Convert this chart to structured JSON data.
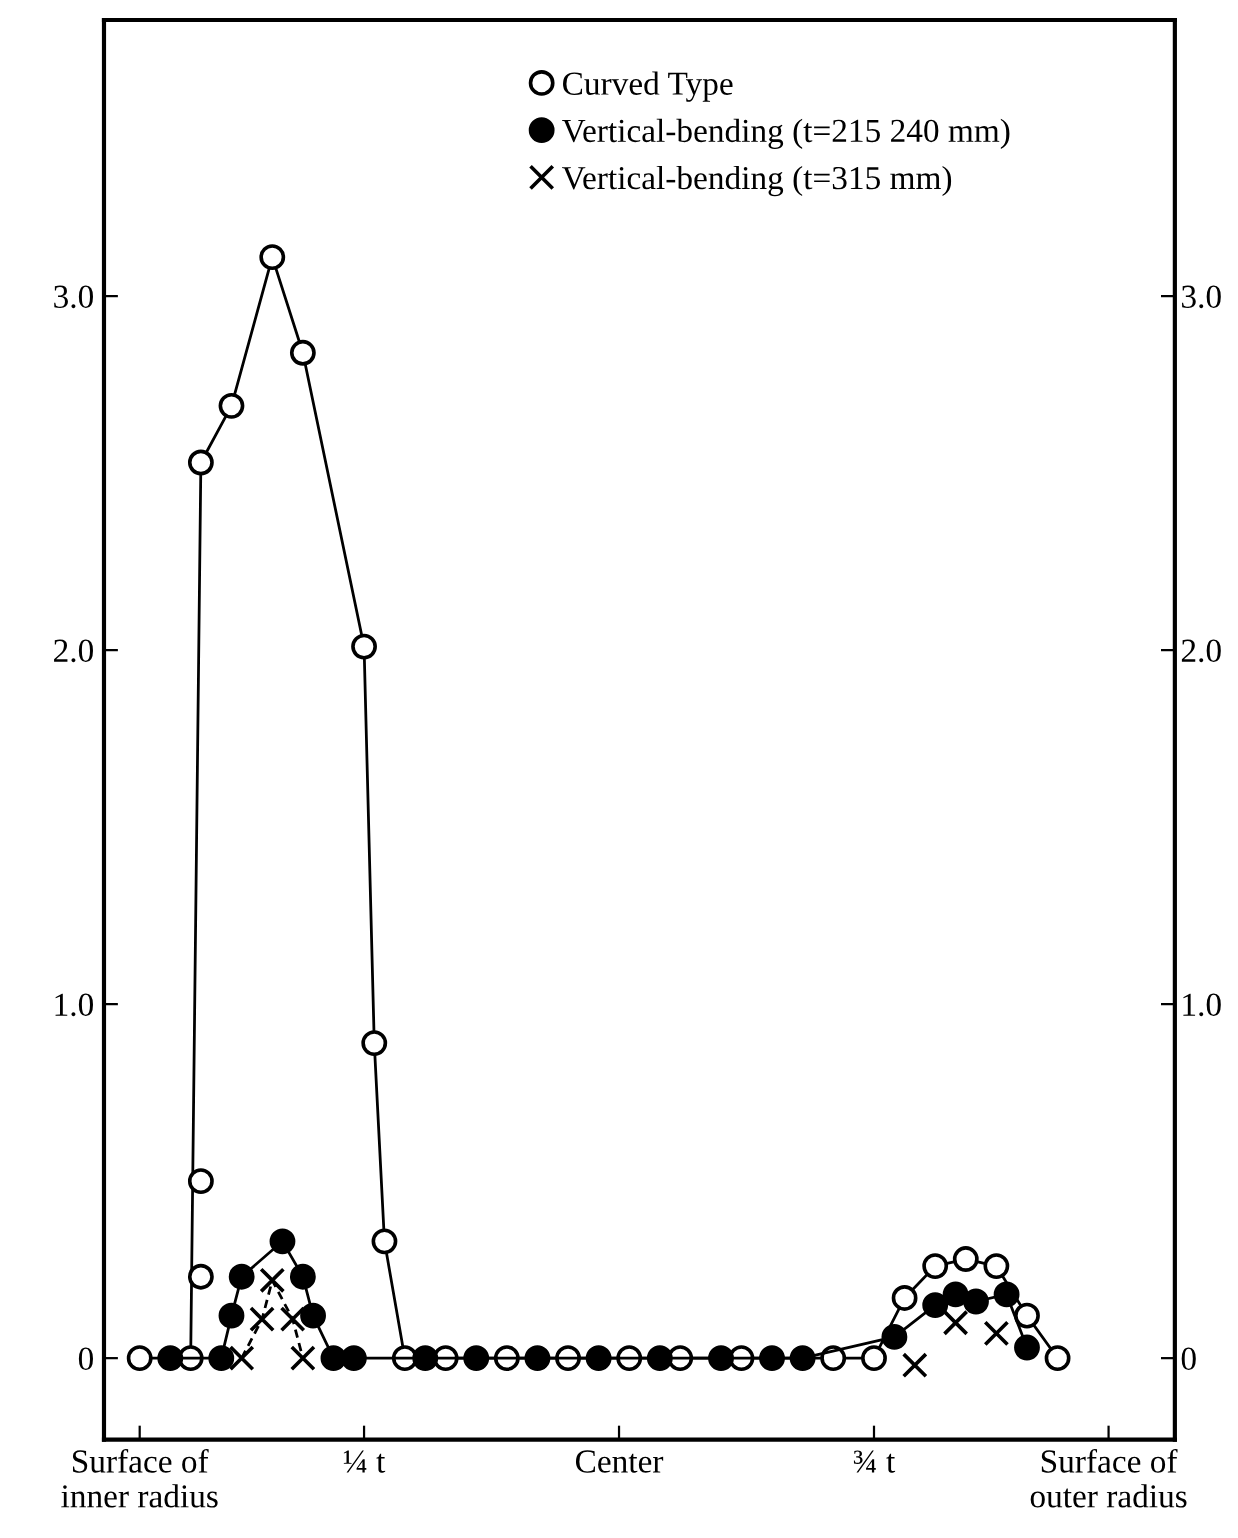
{
  "chart_data": {
    "type": "line",
    "categories": [
      null,
      null,
      null,
      "Surface of\ninner radius",
      null,
      null,
      null,
      null,
      null,
      null,
      null,
      null,
      null,
      null,
      null,
      null,
      null,
      null,
      null,
      null,
      null,
      null,
      null,
      null,
      null,
      "¼ t",
      null,
      null,
      null,
      null,
      null,
      null,
      null,
      null,
      null,
      null,
      null,
      null,
      null,
      null,
      null,
      null,
      null,
      null,
      null,
      null,
      null,
      null,
      null,
      null,
      "Center",
      null,
      null,
      null,
      null,
      null,
      null,
      null,
      null,
      null,
      null,
      null,
      null,
      null,
      null,
      null,
      null,
      null,
      null,
      null,
      null,
      null,
      null,
      null,
      null,
      "¾ t",
      null,
      null,
      null,
      null,
      null,
      null,
      null,
      null,
      null,
      null,
      null,
      null,
      null,
      null,
      null,
      null,
      null,
      null,
      null,
      null,
      null,
      null,
      "Surface of\nouter radius",
      null,
      null,
      null,
      null,
      null,
      null
    ],
    "ylim": [
      -0.23,
      3.78
    ],
    "yticks": [
      0,
      {
        "value": 1,
        "label": "1.0"
      },
      {
        "value": 2,
        "label": "2.0"
      },
      {
        "value": 3,
        "label": "3.0"
      }
    ],
    "y2lim": [
      -0.23,
      3.78
    ],
    "y2ticks": [
      0,
      {
        "value": 1,
        "label": "1.0"
      },
      {
        "value": 2,
        "label": "2.0"
      },
      {
        "value": 3,
        "label": "3.0"
      }
    ],
    "legend": "top",
    "series": [
      {
        "name": "Curved Type",
        "color": "#ffffff",
        "marker": "circle",
        "line_style": "solid",
        "values": [
          null,
          null,
          null,
          0,
          null,
          null,
          null,
          null,
          0,
          2.53,
          null,
          null,
          2.69,
          null,
          null,
          null,
          3.11,
          null,
          null,
          2.84,
          null,
          null,
          null,
          null,
          null,
          2.01,
          0.89,
          0.33,
          null,
          0,
          null,
          null,
          null,
          0,
          null,
          null,
          null,
          null,
          null,
          0,
          null,
          null,
          null,
          null,
          null,
          0,
          null,
          null,
          null,
          null,
          null,
          0,
          null,
          null,
          null,
          null,
          0,
          null,
          null,
          null,
          null,
          null,
          0,
          null,
          null,
          null,
          null,
          null,
          null,
          null,
          null,
          0,
          null,
          null,
          null,
          0,
          null,
          null,
          0.17,
          null,
          null,
          0.26,
          null,
          null,
          0.28,
          null,
          null,
          0.26,
          null,
          null,
          0.12,
          null,
          null,
          0,
          null,
          null,
          null,
          null,
          null,
          null,
          null,
          null,
          null,
          null,
          null
        ]
      },
      {
        "name": "Vertical-bending (t=215 240 mm)",
        "color": "#000000",
        "marker": "circle",
        "line_style": "solid",
        "values": [
          null,
          null,
          null,
          null,
          null,
          null,
          0,
          null,
          null,
          null,
          null,
          0,
          0.12,
          0.23,
          null,
          null,
          null,
          0.33,
          null,
          0.23,
          0.12,
          null,
          0,
          null,
          0,
          null,
          null,
          null,
          null,
          null,
          null,
          0,
          null,
          null,
          null,
          null,
          0,
          null,
          null,
          null,
          null,
          null,
          0,
          null,
          null,
          null,
          null,
          null,
          0,
          null,
          null,
          null,
          null,
          null,
          0,
          null,
          null,
          null,
          null,
          null,
          0,
          null,
          null,
          null,
          null,
          0,
          null,
          null,
          0,
          null,
          null,
          null,
          null,
          null,
          null,
          null,
          null,
          0.06,
          null,
          null,
          null,
          0.15,
          null,
          0.18,
          null,
          0.16,
          null,
          null,
          0.18,
          null,
          0.03,
          null,
          null,
          null,
          null,
          null,
          null,
          null,
          null,
          null,
          null,
          null,
          null,
          null,
          null
        ]
      },
      {
        "name": "Vertical-bending (t=315 mm)",
        "color": "#000000",
        "marker": "cross",
        "line_style": "dashed",
        "values": [
          null,
          null,
          null,
          null,
          null,
          null,
          null,
          null,
          null,
          null,
          null,
          null,
          null,
          0,
          null,
          0.11,
          0.22,
          null,
          0.11,
          0,
          null,
          null,
          null,
          null,
          null,
          null,
          null,
          null,
          null,
          null,
          null,
          null,
          null,
          null,
          null,
          null,
          null,
          null,
          null,
          null,
          null,
          null,
          null,
          null,
          null,
          null,
          null,
          null,
          null,
          null,
          null,
          null,
          null,
          null,
          null,
          null,
          null,
          null,
          null,
          null,
          null,
          null,
          null,
          null,
          null,
          null,
          null,
          null,
          null,
          null,
          null,
          null,
          null,
          null,
          null,
          null,
          null,
          null,
          null,
          null,
          null,
          null,
          null,
          null,
          null,
          null,
          null,
          null,
          null,
          null,
          null,
          null,
          null,
          null,
          null,
          null,
          null,
          null,
          null,
          null,
          null,
          null,
          null,
          null,
          null
        ]
      },
      {
        "type": "scatter",
        "color": "#000000",
        "marker": "cross",
        "values": [
          null,
          null,
          null,
          null,
          null,
          null,
          null,
          null,
          null,
          null,
          null,
          null,
          null,
          null,
          null,
          null,
          null,
          null,
          null,
          null,
          null,
          null,
          null,
          null,
          null,
          null,
          null,
          null,
          null,
          null,
          null,
          null,
          null,
          null,
          null,
          null,
          null,
          null,
          null,
          null,
          null,
          null,
          null,
          null,
          null,
          null,
          null,
          null,
          null,
          null,
          null,
          null,
          null,
          null,
          null,
          null,
          null,
          null,
          null,
          null,
          null,
          null,
          null,
          null,
          null,
          null,
          null,
          null,
          null,
          null,
          null,
          null,
          null,
          null,
          null,
          null,
          null,
          null,
          null,
          -0.02,
          null,
          null,
          null,
          0.1,
          null,
          null,
          null,
          0.07,
          null,
          null,
          null,
          null,
          null,
          null,
          null,
          null,
          null,
          null,
          null,
          null,
          null,
          null,
          null,
          null,
          null
        ]
      },
      {
        "type": "scatter",
        "color": "#ffffff",
        "marker": "circle",
        "values": [
          null,
          null,
          null,
          null,
          null,
          null,
          null,
          null,
          null,
          0.23,
          null,
          null,
          null,
          null,
          null,
          null,
          null,
          null,
          null,
          null,
          null,
          null,
          null,
          null,
          null,
          null,
          null,
          null,
          null,
          null,
          null,
          null,
          null,
          null,
          null,
          null,
          null,
          null,
          null,
          null,
          null,
          null,
          null,
          null,
          null,
          null,
          null,
          null,
          null,
          null,
          null,
          null,
          null,
          null,
          null,
          null,
          null,
          null,
          null,
          null,
          null,
          null,
          null,
          null,
          null,
          null,
          null,
          null,
          null,
          null,
          null,
          null,
          null,
          null,
          null,
          null,
          null,
          null,
          null,
          null,
          null,
          null,
          null,
          null,
          null,
          null,
          null,
          null,
          null,
          null,
          null,
          null,
          null,
          null,
          null,
          null,
          null,
          null,
          null,
          null,
          null,
          null,
          null,
          null,
          null
        ]
      },
      {
        "type": "scatter",
        "color": "#ffffff",
        "marker": "circle",
        "values": [
          null,
          null,
          null,
          null,
          null,
          null,
          null,
          null,
          null,
          0.5,
          null,
          null,
          null,
          null,
          null,
          null,
          null,
          null,
          null,
          null,
          null,
          null,
          null,
          null,
          null,
          null,
          null,
          null,
          null,
          null,
          null,
          null,
          null,
          null,
          null,
          null,
          null,
          null,
          null,
          null,
          null,
          null,
          null,
          null,
          null,
          null,
          null,
          null,
          null,
          null,
          null,
          null,
          null,
          null,
          null,
          null,
          null,
          null,
          null,
          null,
          null,
          null,
          null,
          null,
          null,
          null,
          null,
          null,
          null,
          null,
          null,
          null,
          null,
          null,
          null,
          null,
          null,
          null,
          null,
          null,
          null,
          null,
          null,
          null,
          null,
          null,
          null,
          null,
          null,
          null,
          null,
          null,
          null,
          null,
          null,
          null,
          null,
          null,
          null,
          null,
          null,
          null,
          null,
          null,
          null
        ]
      }
    ]
  }
}
